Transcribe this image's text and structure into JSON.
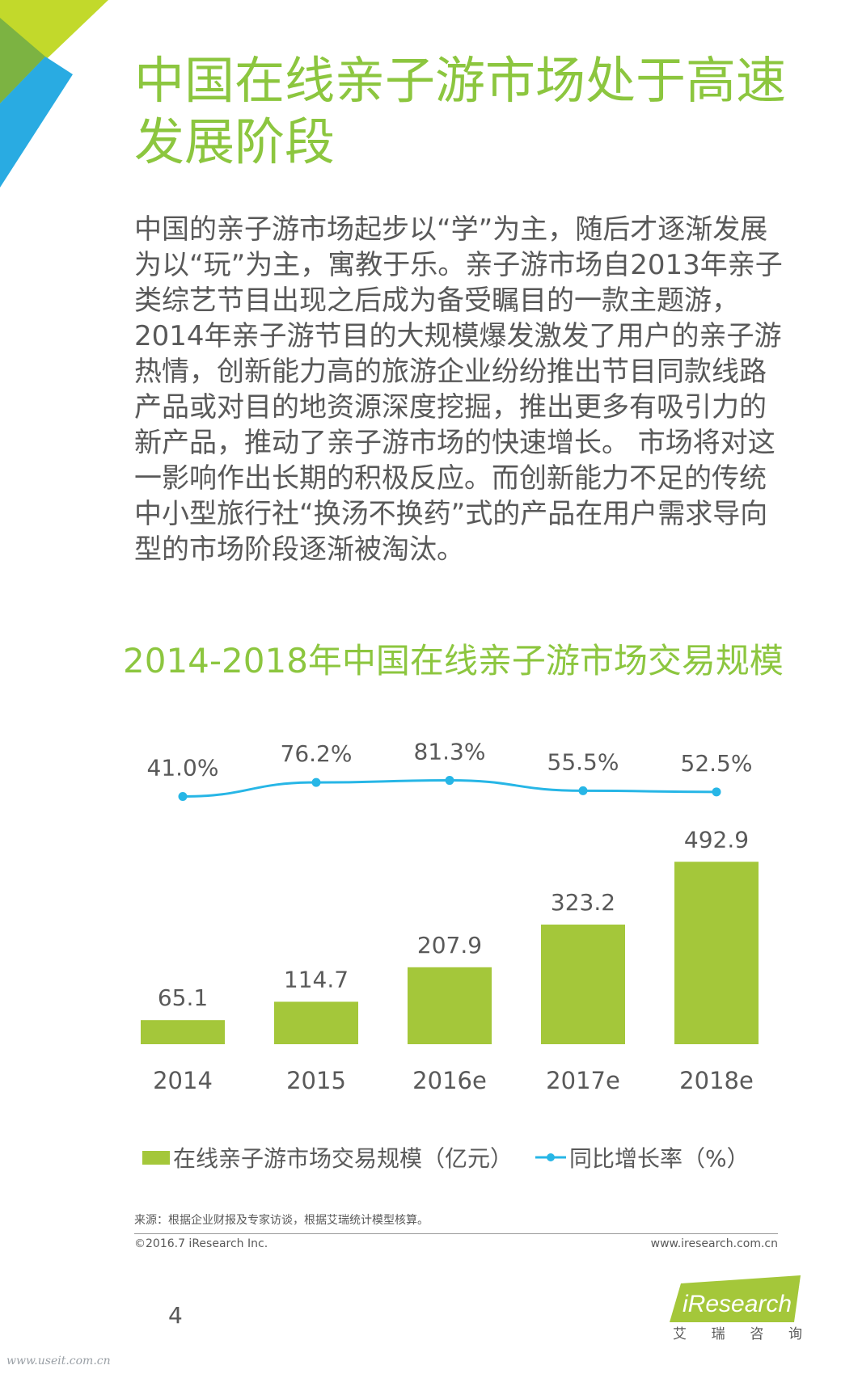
{
  "title": "中国在线亲子游市场处于高速发展阶段",
  "body_text": "中国的亲子游市场起步以“学”为主，随后才逐渐发展为以“玩”为主，寓教于乐。亲子游市场自2013年亲子类综艺节目出现之后成为备受瞩目的一款主题游，2014年亲子游节目的大规模爆发激发了用户的亲子游热情，创新能力高的旅游企业纷纷推出节目同款线路产品或对目的地资源深度挖掘，推出更多有吸引力的新产品，推动了亲子游市场的快速增长。 市场将对这一影响作出长期的积极反应。而创新能力不足的传统中小型旅行社“换汤不换药”式的产品在用户需求导向型的市场阶段逐渐被淘汰。",
  "chart_data": {
    "type": "bar",
    "title": "2014-2018年中国在线亲子游市场交易规模",
    "categories": [
      "2014",
      "2015",
      "2016e",
      "2017e",
      "2018e"
    ],
    "series": [
      {
        "name": "在线亲子游市场交易规模（亿元）",
        "type": "bar",
        "values": [
          65.1,
          114.7,
          207.9,
          323.2,
          492.9
        ],
        "labels": [
          "65.1",
          "114.7",
          "207.9",
          "323.2",
          "492.9"
        ],
        "color": "#a4c73a"
      },
      {
        "name": "同比增长率（%）",
        "type": "line",
        "values": [
          41.0,
          76.2,
          81.3,
          55.5,
          52.5
        ],
        "labels": [
          "41.0%",
          "76.2%",
          "81.3%",
          "55.5%",
          "52.5%"
        ],
        "color": "#27b6e6"
      }
    ],
    "legend_position": "bottom",
    "grid": false
  },
  "footer": {
    "source": "来源：根据企业财报及专家访谈，根据艾瑞统计模型核算。",
    "copyright": "©2016.7 iResearch Inc.",
    "website": "www.iresearch.com.cn",
    "page_number": "4",
    "logo_text": "iResearch",
    "logo_sub": [
      "艾",
      "瑞",
      "咨",
      "询"
    ],
    "watermark": "www.useit.com.cn"
  },
  "colors": {
    "title_green": "#8cc63f",
    "bar_green": "#a4c73a",
    "line_blue": "#27b6e6",
    "text_gray": "#595959"
  }
}
